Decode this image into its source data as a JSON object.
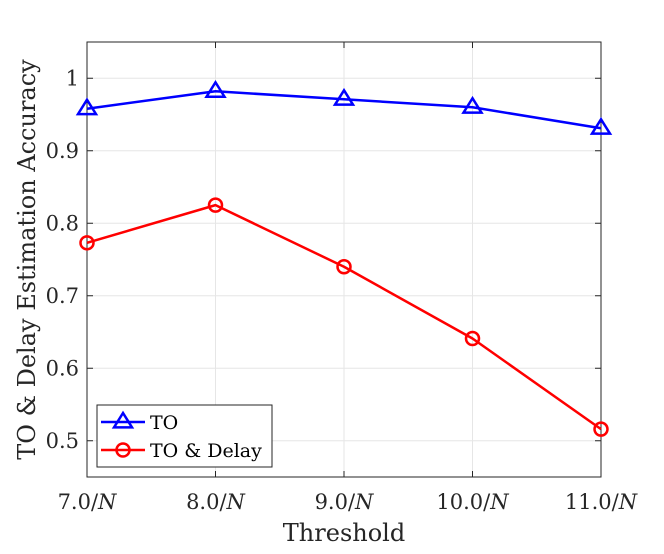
{
  "chart_data": {
    "type": "line",
    "title": "",
    "xlabel": "Threshold",
    "ylabel": "TO & Delay Estimation Accuracy",
    "categories": [
      "7.0/N",
      "8.0/N",
      "9.0/N",
      "10.0/N",
      "11.0/N"
    ],
    "x_tick_labels": [
      {
        "num": "7.0/",
        "var": "N"
      },
      {
        "num": "8.0/",
        "var": "N"
      },
      {
        "num": "9.0/",
        "var": "N"
      },
      {
        "num": "10.0/",
        "var": "N"
      },
      {
        "num": "11.0/",
        "var": "N"
      }
    ],
    "y_ticks": [
      "0.5",
      "0.6",
      "0.7",
      "0.8",
      "0.9",
      "1"
    ],
    "ylim": [
      0.45,
      1.05
    ],
    "grid": true,
    "legend_position": "bottom-left",
    "series": [
      {
        "name": "TO",
        "color": "#0000ff",
        "marker": "triangle",
        "values": [
          0.958,
          0.982,
          0.971,
          0.96,
          0.931
        ]
      },
      {
        "name": "TO & Delay",
        "color": "#ff0000",
        "marker": "circle",
        "values": [
          0.773,
          0.825,
          0.74,
          0.641,
          0.516
        ]
      }
    ]
  }
}
